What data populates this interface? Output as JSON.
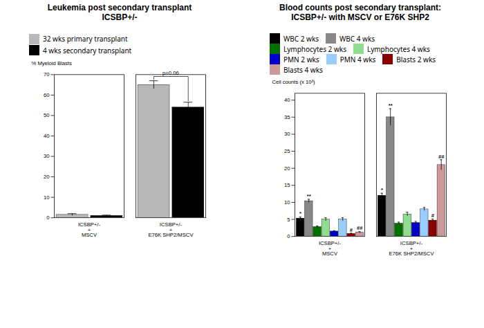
{
  "chart_data": [
    {
      "type": "bar",
      "title": "Leukemia post secondary transplant\nICSBP+/-",
      "ylabel": "% Myeloid Blasts",
      "categories": [
        "ICSBP+/-\n+\nMSCV",
        "ICSBP+/-\n+\nE76K SHP2/MSCV"
      ],
      "series": [
        {
          "name": "32 wks primary transplant",
          "color": "#b8b8b8",
          "values": [
            1.5,
            65.0
          ],
          "errors": [
            0.5,
            2.0
          ]
        },
        {
          "name": "4 wks secondary transplant",
          "color": "#000000",
          "values": [
            1.0,
            54.0
          ],
          "errors": [
            0.3,
            2.5
          ]
        }
      ],
      "annotations": [
        {
          "text": "p=0.06",
          "category": "ICSBP+/-\n+\nE76K SHP2/MSCV"
        }
      ],
      "ylim": [
        0,
        70
      ],
      "yticks": [
        0,
        10,
        20,
        30,
        40,
        50,
        60,
        70
      ],
      "legend": "upper left",
      "grid": false
    },
    {
      "type": "bar",
      "title": "Blood counts post secondary transplant:\nICSBP+/- with MSCV or E76K SHP2",
      "ylabel": "Cell counts (x 10³)",
      "categories": [
        "ICSBP+/-\n+\nMSCV",
        "ICSBP+/-\n+\nE76K SHP2/MSCV"
      ],
      "series": [
        {
          "name": "WBC 2 wks",
          "color": "#000000",
          "values": [
            5.3,
            12.0
          ],
          "errors": [
            0.4,
            0.7
          ],
          "annotations": [
            "*",
            "*"
          ]
        },
        {
          "name": "WBC 4 wks",
          "color": "#888888",
          "values": [
            10.4,
            35.0
          ],
          "errors": [
            0.5,
            2.5
          ],
          "annotations": [
            "**",
            "**"
          ]
        },
        {
          "name": "Lymphocytes 2 wks",
          "color": "#007000",
          "values": [
            2.8,
            3.8
          ],
          "errors": [
            0.3,
            0.4
          ]
        },
        {
          "name": "Lymphocytes 4 wks",
          "color": "#90DD90",
          "values": [
            5.0,
            6.5
          ],
          "errors": [
            0.5,
            0.6
          ]
        },
        {
          "name": "PMN 2 wks",
          "color": "#0000CC",
          "values": [
            1.5,
            4.0
          ],
          "errors": [
            0.2,
            0.4
          ]
        },
        {
          "name": "PMN 4 wks",
          "color": "#99CCFF",
          "values": [
            5.0,
            8.0
          ],
          "errors": [
            0.5,
            0.5
          ]
        },
        {
          "name": "Blasts 2 wks",
          "color": "#880000",
          "values": [
            0.8,
            4.7
          ],
          "errors": [
            0.15,
            0.4
          ],
          "annotations": [
            "#",
            "#"
          ]
        },
        {
          "name": "Blasts 4 wks",
          "color": "#CC9999",
          "values": [
            1.2,
            21.0
          ],
          "errors": [
            0.2,
            1.5
          ],
          "annotations": [
            "##",
            "##"
          ]
        }
      ],
      "ylim": [
        0,
        42
      ],
      "yticks": [
        0,
        5,
        10,
        15,
        20,
        25,
        30,
        35,
        40
      ],
      "legend": "upper left",
      "grid": false
    }
  ]
}
